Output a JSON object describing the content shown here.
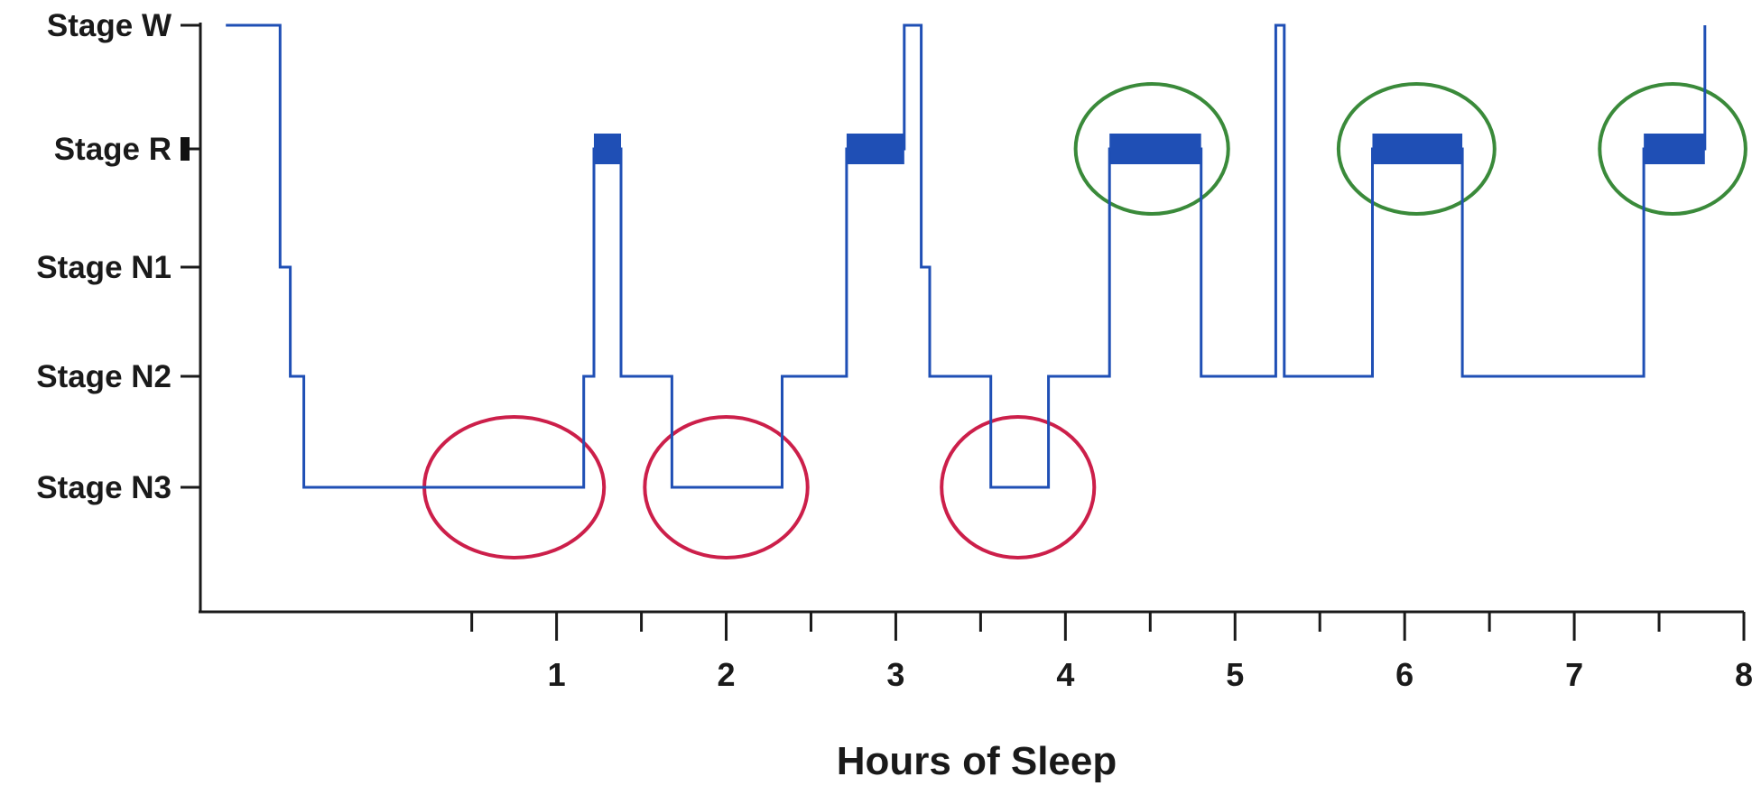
{
  "chart_data": {
    "type": "line",
    "xlabel": "Hours of Sleep",
    "ylabel": "",
    "xlim": [
      -1.1,
      8
    ],
    "xticks_major": [
      1,
      2,
      3,
      4,
      5,
      6,
      7,
      8
    ],
    "xticks_minor": [
      0.5,
      1.5,
      2.5,
      3.5,
      4.5,
      5.5,
      6.5,
      7.5
    ],
    "stages": [
      "Stage W",
      "Stage R",
      "Stage N1",
      "Stage N2",
      "Stage N3"
    ],
    "series_color": "#1f4fb5",
    "rem_bar_color": "#1f4fb5",
    "nrem_highlight_color": "#cc1f4a",
    "rem_highlight_color": "#3a8a3a",
    "hypnogram": [
      {
        "x": -0.95,
        "stage": "Stage W"
      },
      {
        "x": -0.63,
        "stage": "Stage W"
      },
      {
        "x": -0.63,
        "stage": "Stage N1"
      },
      {
        "x": -0.57,
        "stage": "Stage N1"
      },
      {
        "x": -0.57,
        "stage": "Stage N2"
      },
      {
        "x": -0.49,
        "stage": "Stage N2"
      },
      {
        "x": -0.49,
        "stage": "Stage N3"
      },
      {
        "x": 1.16,
        "stage": "Stage N3"
      },
      {
        "x": 1.16,
        "stage": "Stage N2"
      },
      {
        "x": 1.22,
        "stage": "Stage N2"
      },
      {
        "x": 1.22,
        "stage": "Stage R"
      },
      {
        "x": 1.38,
        "stage": "Stage R"
      },
      {
        "x": 1.38,
        "stage": "Stage N2"
      },
      {
        "x": 1.68,
        "stage": "Stage N2"
      },
      {
        "x": 1.68,
        "stage": "Stage N3"
      },
      {
        "x": 2.33,
        "stage": "Stage N3"
      },
      {
        "x": 2.33,
        "stage": "Stage N2"
      },
      {
        "x": 2.71,
        "stage": "Stage N2"
      },
      {
        "x": 2.71,
        "stage": "Stage R"
      },
      {
        "x": 3.05,
        "stage": "Stage R"
      },
      {
        "x": 3.05,
        "stage": "Stage W"
      },
      {
        "x": 3.15,
        "stage": "Stage W"
      },
      {
        "x": 3.15,
        "stage": "Stage N1"
      },
      {
        "x": 3.2,
        "stage": "Stage N1"
      },
      {
        "x": 3.2,
        "stage": "Stage N2"
      },
      {
        "x": 3.56,
        "stage": "Stage N2"
      },
      {
        "x": 3.56,
        "stage": "Stage N3"
      },
      {
        "x": 3.9,
        "stage": "Stage N3"
      },
      {
        "x": 3.9,
        "stage": "Stage N2"
      },
      {
        "x": 4.26,
        "stage": "Stage N2"
      },
      {
        "x": 4.26,
        "stage": "Stage R"
      },
      {
        "x": 4.8,
        "stage": "Stage R"
      },
      {
        "x": 4.8,
        "stage": "Stage N2"
      },
      {
        "x": 5.24,
        "stage": "Stage N2"
      },
      {
        "x": 5.24,
        "stage": "Stage W"
      },
      {
        "x": 5.29,
        "stage": "Stage W"
      },
      {
        "x": 5.29,
        "stage": "Stage N2"
      },
      {
        "x": 5.81,
        "stage": "Stage N2"
      },
      {
        "x": 5.81,
        "stage": "Stage R"
      },
      {
        "x": 6.34,
        "stage": "Stage R"
      },
      {
        "x": 6.34,
        "stage": "Stage N2"
      },
      {
        "x": 7.41,
        "stage": "Stage N2"
      },
      {
        "x": 7.41,
        "stage": "Stage R"
      },
      {
        "x": 7.77,
        "stage": "Stage R"
      },
      {
        "x": 7.77,
        "stage": "Stage W"
      }
    ],
    "rem_bars": [
      [
        1.22,
        1.38
      ],
      [
        2.71,
        3.05
      ],
      [
        4.26,
        4.8
      ],
      [
        5.81,
        6.34
      ],
      [
        7.41,
        7.77
      ]
    ],
    "highlights": [
      {
        "kind": "nrem",
        "cx": 0.75,
        "rx": 0.53,
        "stage": "Stage N3"
      },
      {
        "kind": "nrem",
        "cx": 2.0,
        "rx": 0.48,
        "stage": "Stage N3"
      },
      {
        "kind": "nrem",
        "cx": 3.72,
        "rx": 0.45,
        "stage": "Stage N3"
      },
      {
        "kind": "rem",
        "cx": 4.51,
        "rx": 0.45,
        "stage": "Stage R"
      },
      {
        "kind": "rem",
        "cx": 6.07,
        "rx": 0.46,
        "stage": "Stage R"
      },
      {
        "kind": "rem",
        "cx": 7.58,
        "rx": 0.43,
        "stage": "Stage R"
      }
    ]
  }
}
